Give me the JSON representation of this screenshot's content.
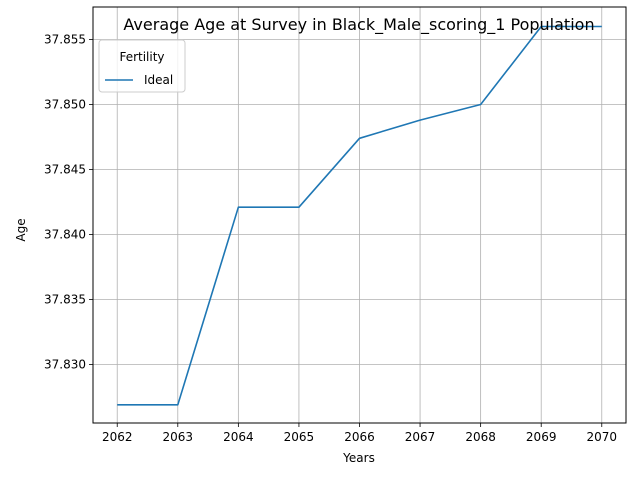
{
  "chart_data": {
    "type": "line",
    "title": "Average Age at Survey in Black_Male_scoring_1 Population",
    "xlabel": "Years",
    "ylabel": "Age",
    "x": [
      2062,
      2063,
      2064,
      2065,
      2066,
      2067,
      2068,
      2069,
      2070
    ],
    "xlim": [
      2061.6,
      2070.4
    ],
    "ylim": [
      37.8255,
      37.8575
    ],
    "xticks": [
      "2062",
      "2063",
      "2064",
      "2065",
      "2066",
      "2067",
      "2068",
      "2069",
      "2070"
    ],
    "yticks": [
      "37.830",
      "37.835",
      "37.840",
      "37.845",
      "37.850",
      "37.855"
    ],
    "grid": true,
    "legend": {
      "title": "Fertility",
      "position": "top-left"
    },
    "series": [
      {
        "name": "Ideal",
        "color": "#1f77b4",
        "values": [
          37.8269,
          37.8269,
          37.8421,
          37.8421,
          37.8474,
          37.8488,
          37.85,
          37.856,
          37.856
        ]
      }
    ]
  }
}
